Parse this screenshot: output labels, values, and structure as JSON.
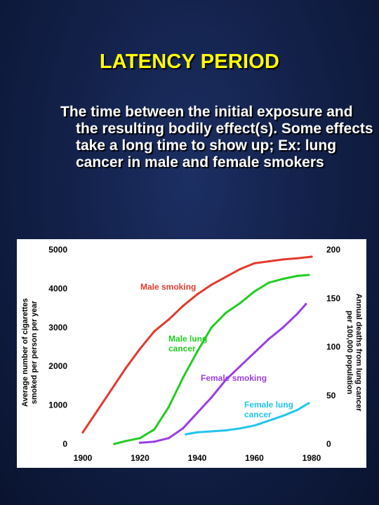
{
  "slide": {
    "title": "LATENCY PERIOD",
    "body": "The time between the initial exposure and the resulting bodily effect(s).  Some effects take a long time to show up;  Ex:  lung cancer in male and female smokers"
  },
  "colors": {
    "background": "#13214a",
    "title": "#ffff00",
    "male_smoking": "#e23a2e",
    "male_lung_cancer": "#22cc22",
    "female_smoking": "#9a3ee6",
    "female_lung_cancer": "#22c4ee"
  },
  "chart_data": {
    "type": "line",
    "xlim": [
      1900,
      1980
    ],
    "x_ticks": [
      "1900",
      "1920",
      "1940",
      "1960",
      "1980"
    ],
    "y_left": {
      "label": "Average number of cigarettes smoked per person per year",
      "lim": [
        0,
        5000
      ],
      "ticks": [
        "0",
        "1000",
        "2000",
        "3000",
        "4000",
        "5000"
      ]
    },
    "y_right": {
      "label": "Annual deaths from lung cancer per 100,000 population",
      "lim": [
        0,
        200
      ],
      "ticks": [
        "0",
        "50",
        "100",
        "150",
        "200"
      ]
    },
    "grid": false,
    "series": [
      {
        "name": "Male smoking",
        "axis": "left",
        "color": "#e23a2e",
        "label_lines": [
          "Male smoking"
        ],
        "x": [
          1900,
          1905,
          1910,
          1915,
          1920,
          1925,
          1930,
          1935,
          1940,
          1945,
          1950,
          1955,
          1960,
          1965,
          1970,
          1975,
          1980
        ],
        "y": [
          300,
          850,
          1400,
          1950,
          2450,
          2900,
          3200,
          3550,
          3850,
          4100,
          4300,
          4500,
          4650,
          4700,
          4750,
          4780,
          4820
        ]
      },
      {
        "name": "Male lung cancer",
        "axis": "right",
        "color": "#22cc22",
        "label_lines": [
          "Male lung",
          "cancer"
        ],
        "x": [
          1911,
          1915,
          1920,
          1925,
          1930,
          1935,
          1940,
          1945,
          1950,
          1955,
          1960,
          1965,
          1970,
          1975,
          1979
        ],
        "y": [
          0,
          3,
          6,
          15,
          38,
          68,
          95,
          120,
          135,
          145,
          157,
          166,
          170,
          173,
          174
        ]
      },
      {
        "name": "Female smoking",
        "axis": "left",
        "color": "#9a3ee6",
        "label_lines": [
          "Female smoking"
        ],
        "x": [
          1920,
          1925,
          1930,
          1935,
          1940,
          1945,
          1950,
          1955,
          1960,
          1965,
          1970,
          1975,
          1978
        ],
        "y": [
          30,
          60,
          150,
          400,
          800,
          1200,
          1650,
          2000,
          2350,
          2700,
          3000,
          3350,
          3600
        ]
      },
      {
        "name": "Female lung cancer",
        "axis": "right",
        "color": "#22c4ee",
        "label_lines": [
          "Female lung",
          "cancer"
        ],
        "x": [
          1936,
          1940,
          1945,
          1950,
          1955,
          1960,
          1965,
          1970,
          1975,
          1979
        ],
        "y": [
          10,
          12,
          13,
          14,
          16,
          19,
          24,
          29,
          35,
          42
        ]
      }
    ]
  }
}
